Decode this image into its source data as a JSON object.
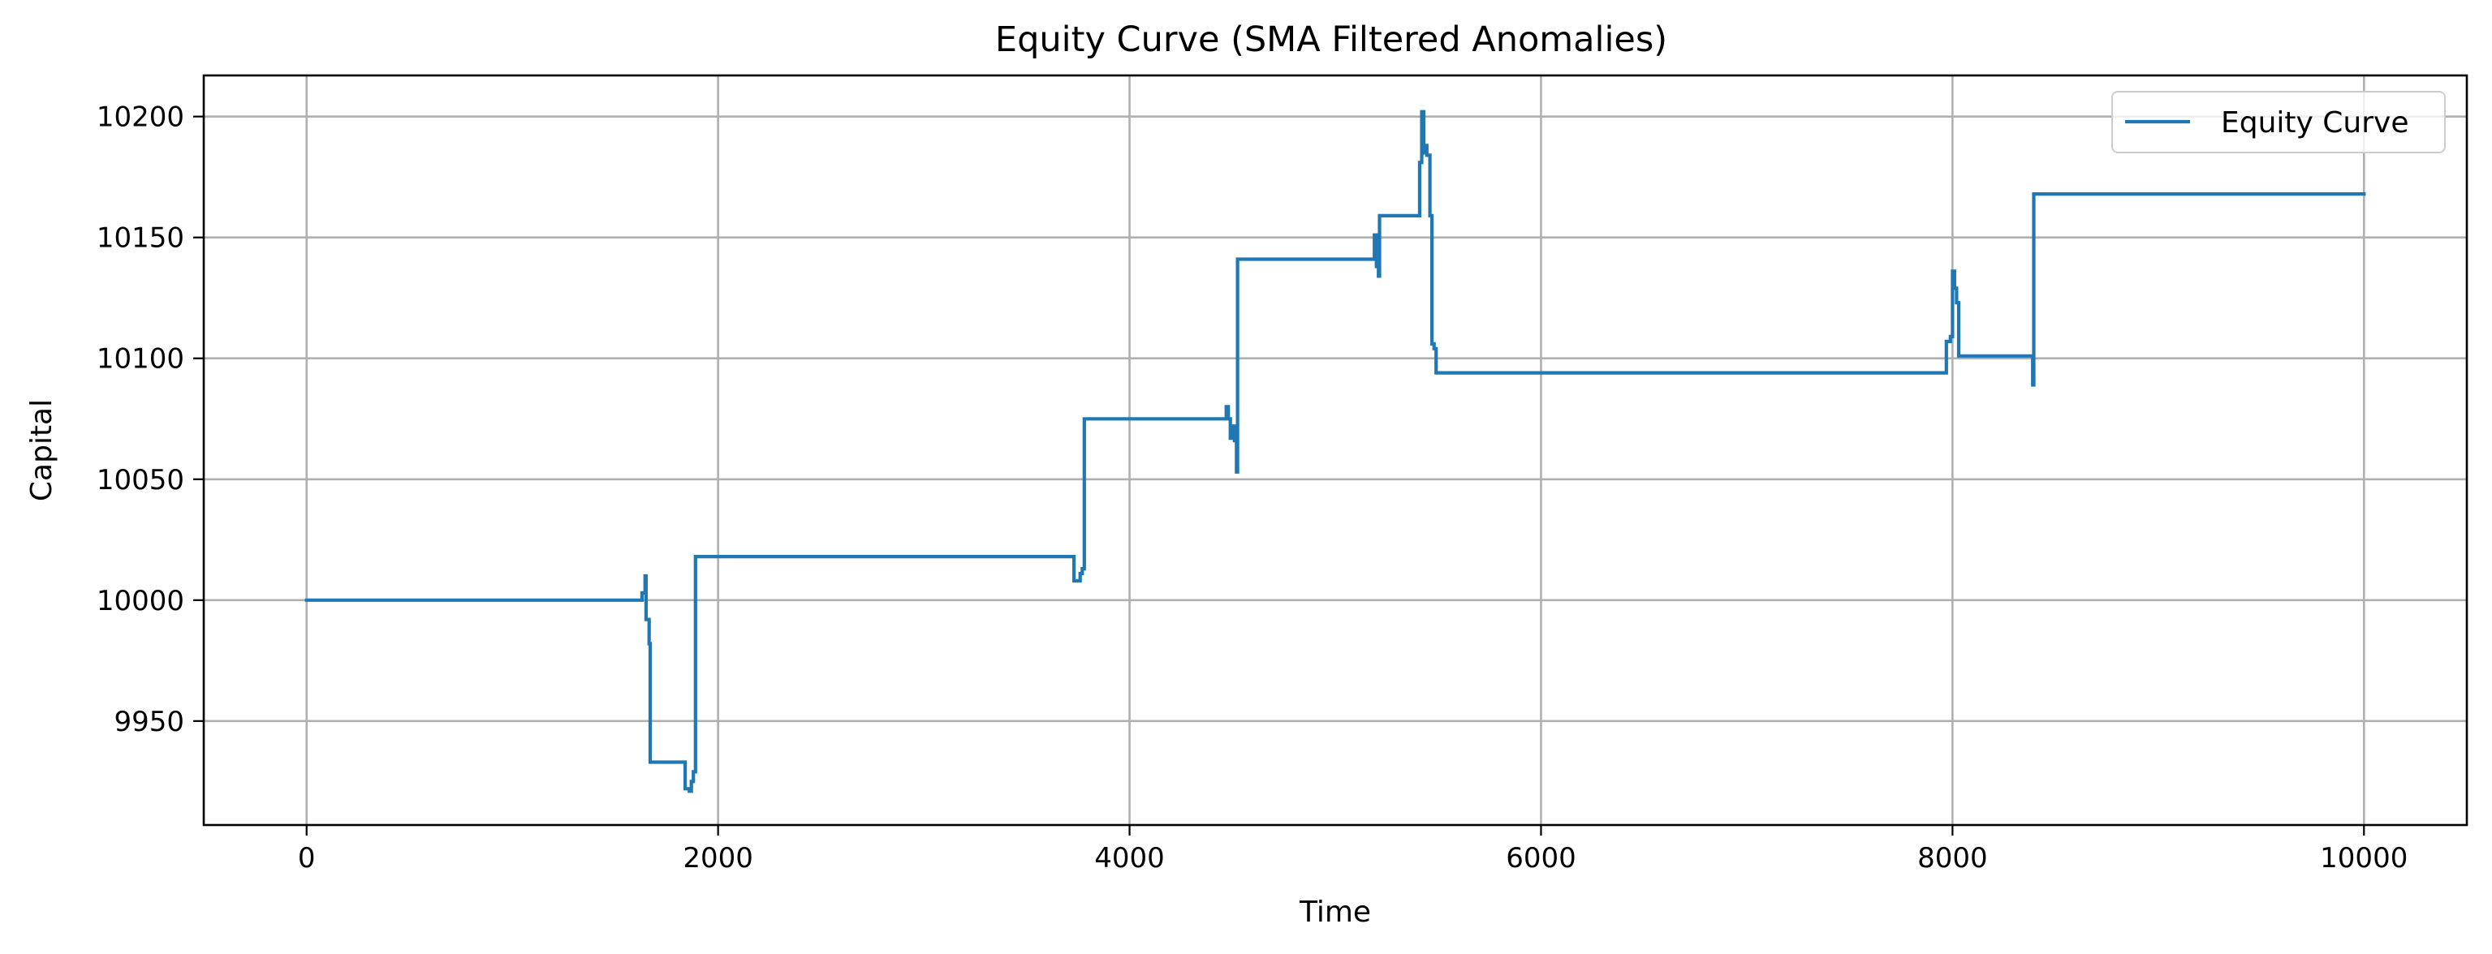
{
  "chart_data": {
    "type": "line",
    "title": "Equity Curve (SMA Filtered Anomalies)",
    "xlabel": "Time",
    "ylabel": "Capital",
    "xlim": [
      -500,
      10500
    ],
    "ylim": [
      9907,
      10217
    ],
    "xticks": [
      0,
      2000,
      4000,
      6000,
      8000,
      10000
    ],
    "xtick_labels": [
      "0",
      "2000",
      "4000",
      "6000",
      "8000",
      "10000"
    ],
    "yticks": [
      9950,
      10000,
      10050,
      10100,
      10150,
      10200
    ],
    "ytick_labels": [
      "9950",
      "10000",
      "10050",
      "10100",
      "10150",
      "10200"
    ],
    "grid": true,
    "legend": {
      "position": "top-right",
      "entries": [
        "Equity Curve"
      ]
    },
    "colors": {
      "series": "#1f77b4",
      "grid": "#b0b0b0",
      "background": "#ffffff"
    },
    "series": [
      {
        "name": "Equity Curve",
        "color": "#1f77b4",
        "step": true,
        "points": [
          [
            0,
            10000
          ],
          [
            1620,
            10000
          ],
          [
            1630,
            10003
          ],
          [
            1645,
            10010
          ],
          [
            1650,
            9992
          ],
          [
            1665,
            9982
          ],
          [
            1670,
            9933
          ],
          [
            1830,
            9933
          ],
          [
            1840,
            9922
          ],
          [
            1860,
            9921
          ],
          [
            1870,
            9925
          ],
          [
            1880,
            9929
          ],
          [
            1890,
            10018
          ],
          [
            3720,
            10018
          ],
          [
            3730,
            10008
          ],
          [
            3750,
            10008
          ],
          [
            3760,
            10011
          ],
          [
            3770,
            10013
          ],
          [
            3780,
            10075
          ],
          [
            4460,
            10075
          ],
          [
            4470,
            10080
          ],
          [
            4480,
            10075
          ],
          [
            4490,
            10067
          ],
          [
            4500,
            10072
          ],
          [
            4510,
            10066
          ],
          [
            4520,
            10053
          ],
          [
            4525,
            10141
          ],
          [
            5180,
            10141
          ],
          [
            5190,
            10151
          ],
          [
            5200,
            10138
          ],
          [
            5210,
            10134
          ],
          [
            5215,
            10159
          ],
          [
            5400,
            10159
          ],
          [
            5410,
            10181
          ],
          [
            5420,
            10202
          ],
          [
            5430,
            10185
          ],
          [
            5440,
            10188
          ],
          [
            5445,
            10184
          ],
          [
            5460,
            10159
          ],
          [
            5470,
            10106
          ],
          [
            5480,
            10104
          ],
          [
            5490,
            10094
          ],
          [
            7960,
            10094
          ],
          [
            7970,
            10107
          ],
          [
            7990,
            10109
          ],
          [
            8000,
            10136
          ],
          [
            8010,
            10129
          ],
          [
            8020,
            10123
          ],
          [
            8030,
            10101
          ],
          [
            8380,
            10101
          ],
          [
            8390,
            10089
          ],
          [
            8395,
            10168
          ],
          [
            10000,
            10168
          ]
        ]
      }
    ]
  }
}
